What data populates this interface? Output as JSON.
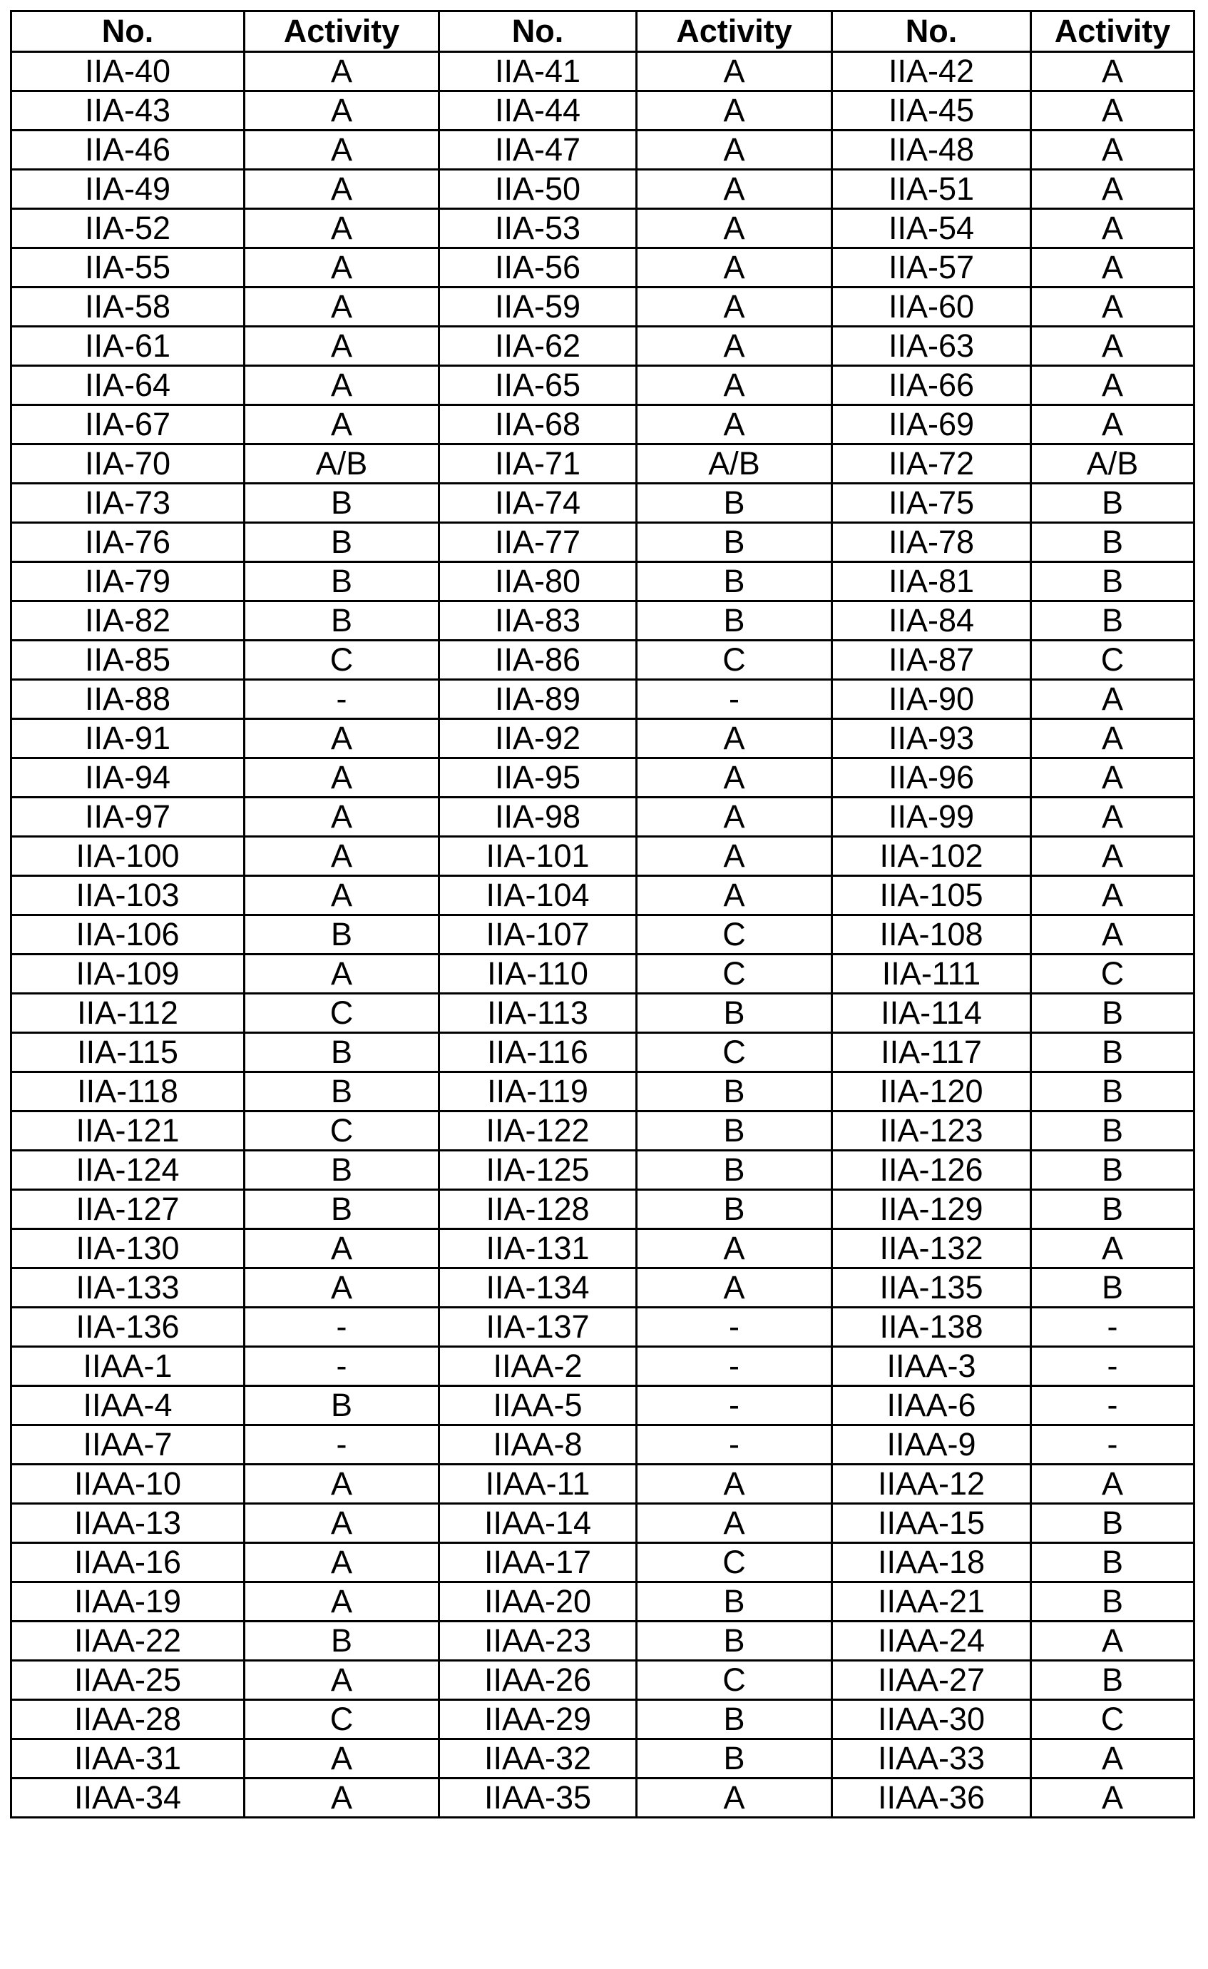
{
  "table": {
    "headers": [
      "No.",
      "Activity",
      "No.",
      "Activity",
      "No.",
      "Activity"
    ],
    "rows": [
      [
        "IIA-40",
        "A",
        "IIA-41",
        "A",
        "IIA-42",
        "A"
      ],
      [
        "IIA-43",
        "A",
        "IIA-44",
        "A",
        "IIA-45",
        "A"
      ],
      [
        "IIA-46",
        "A",
        "IIA-47",
        "A",
        "IIA-48",
        "A"
      ],
      [
        "IIA-49",
        "A",
        "IIA-50",
        "A",
        "IIA-51",
        "A"
      ],
      [
        "IIA-52",
        "A",
        "IIA-53",
        "A",
        "IIA-54",
        "A"
      ],
      [
        "IIA-55",
        "A",
        "IIA-56",
        "A",
        "IIA-57",
        "A"
      ],
      [
        "IIA-58",
        "A",
        "IIA-59",
        "A",
        "IIA-60",
        "A"
      ],
      [
        "IIA-61",
        "A",
        "IIA-62",
        "A",
        "IIA-63",
        "A"
      ],
      [
        "IIA-64",
        "A",
        "IIA-65",
        "A",
        "IIA-66",
        "A"
      ],
      [
        "IIA-67",
        "A",
        "IIA-68",
        "A",
        "IIA-69",
        "A"
      ],
      [
        "IIA-70",
        "A/B",
        "IIA-71",
        "A/B",
        "IIA-72",
        "A/B"
      ],
      [
        "IIA-73",
        "B",
        "IIA-74",
        "B",
        "IIA-75",
        "B"
      ],
      [
        "IIA-76",
        "B",
        "IIA-77",
        "B",
        "IIA-78",
        "B"
      ],
      [
        "IIA-79",
        "B",
        "IIA-80",
        "B",
        "IIA-81",
        "B"
      ],
      [
        "IIA-82",
        "B",
        "IIA-83",
        "B",
        "IIA-84",
        "B"
      ],
      [
        "IIA-85",
        "C",
        "IIA-86",
        "C",
        "IIA-87",
        "C"
      ],
      [
        "IIA-88",
        "-",
        "IIA-89",
        "-",
        "IIA-90",
        "A"
      ],
      [
        "IIA-91",
        "A",
        "IIA-92",
        "A",
        "IIA-93",
        "A"
      ],
      [
        "IIA-94",
        "A",
        "IIA-95",
        "A",
        "IIA-96",
        "A"
      ],
      [
        "IIA-97",
        "A",
        "IIA-98",
        "A",
        "IIA-99",
        "A"
      ],
      [
        "IIA-100",
        "A",
        "IIA-101",
        "A",
        "IIA-102",
        "A"
      ],
      [
        "IIA-103",
        "A",
        "IIA-104",
        "A",
        "IIA-105",
        "A"
      ],
      [
        "IIA-106",
        "B",
        "IIA-107",
        "C",
        "IIA-108",
        "A"
      ],
      [
        "IIA-109",
        "A",
        "IIA-110",
        "C",
        "IIA-111",
        "C"
      ],
      [
        "IIA-112",
        "C",
        "IIA-113",
        "B",
        "IIA-114",
        "B"
      ],
      [
        "IIA-115",
        "B",
        "IIA-116",
        "C",
        "IIA-117",
        "B"
      ],
      [
        "IIA-118",
        "B",
        "IIA-119",
        "B",
        "IIA-120",
        "B"
      ],
      [
        "IIA-121",
        "C",
        "IIA-122",
        "B",
        "IIA-123",
        "B"
      ],
      [
        "IIA-124",
        "B",
        "IIA-125",
        "B",
        "IIA-126",
        "B"
      ],
      [
        "IIA-127",
        "B",
        "IIA-128",
        "B",
        "IIA-129",
        "B"
      ],
      [
        "IIA-130",
        "A",
        "IIA-131",
        "A",
        "IIA-132",
        "A"
      ],
      [
        "IIA-133",
        "A",
        "IIA-134",
        "A",
        "IIA-135",
        "B"
      ],
      [
        "IIA-136",
        "-",
        "IIA-137",
        "-",
        "IIA-138",
        "-"
      ],
      [
        "IIAA-1",
        "-",
        "IIAA-2",
        "-",
        "IIAA-3",
        "-"
      ],
      [
        "IIAA-4",
        "B",
        "IIAA-5",
        "-",
        "IIAA-6",
        "-"
      ],
      [
        "IIAA-7",
        "-",
        "IIAA-8",
        "-",
        "IIAA-9",
        "-"
      ],
      [
        "IIAA-10",
        "A",
        "IIAA-11",
        "A",
        "IIAA-12",
        "A"
      ],
      [
        "IIAA-13",
        "A",
        "IIAA-14",
        "A",
        "IIAA-15",
        "B"
      ],
      [
        "IIAA-16",
        "A",
        "IIAA-17",
        "C",
        "IIAA-18",
        "B"
      ],
      [
        "IIAA-19",
        "A",
        "IIAA-20",
        "B",
        "IIAA-21",
        "B"
      ],
      [
        "IIAA-22",
        "B",
        "IIAA-23",
        "B",
        "IIAA-24",
        "A"
      ],
      [
        "IIAA-25",
        "A",
        "IIAA-26",
        "C",
        "IIAA-27",
        "B"
      ],
      [
        "IIAA-28",
        "C",
        "IIAA-29",
        "B",
        "IIAA-30",
        "C"
      ],
      [
        "IIAA-31",
        "A",
        "IIAA-32",
        "B",
        "IIAA-33",
        "A"
      ],
      [
        "IIAA-34",
        "A",
        "IIAA-35",
        "A",
        "IIAA-36",
        "A"
      ]
    ]
  }
}
